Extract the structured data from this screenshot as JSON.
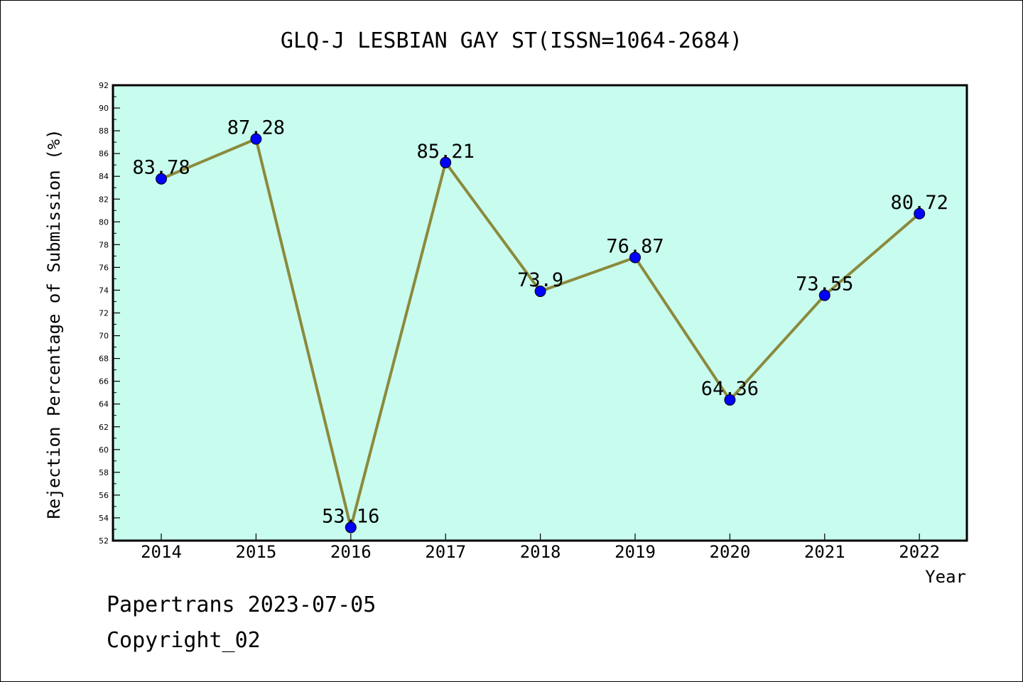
{
  "chart_data": {
    "type": "line",
    "title": "GLQ-J LESBIAN GAY ST(ISSN=1064-2684)",
    "xlabel": "Year",
    "ylabel": "Rejection Percentage of Submission (%)",
    "categories": [
      "2014",
      "2015",
      "2016",
      "2017",
      "2018",
      "2019",
      "2020",
      "2021",
      "2022"
    ],
    "values": [
      83.78,
      87.28,
      53.16,
      85.21,
      73.9,
      76.87,
      64.36,
      73.55,
      80.72
    ],
    "value_labels": [
      "83.78",
      "87.28",
      "53.16",
      "85.21",
      "73.9",
      "76.87",
      "64.36",
      "73.55",
      "80.72"
    ],
    "ylim": [
      52,
      92
    ],
    "ytick_step": 2,
    "grid": false,
    "colors": {
      "plot_background": "#c8fcee",
      "line": "#8b8a3c",
      "marker": "#0000ff"
    }
  },
  "footer": {
    "date_line": "Papertrans 2023-07-05",
    "copyright_line": "Copyright_02"
  }
}
